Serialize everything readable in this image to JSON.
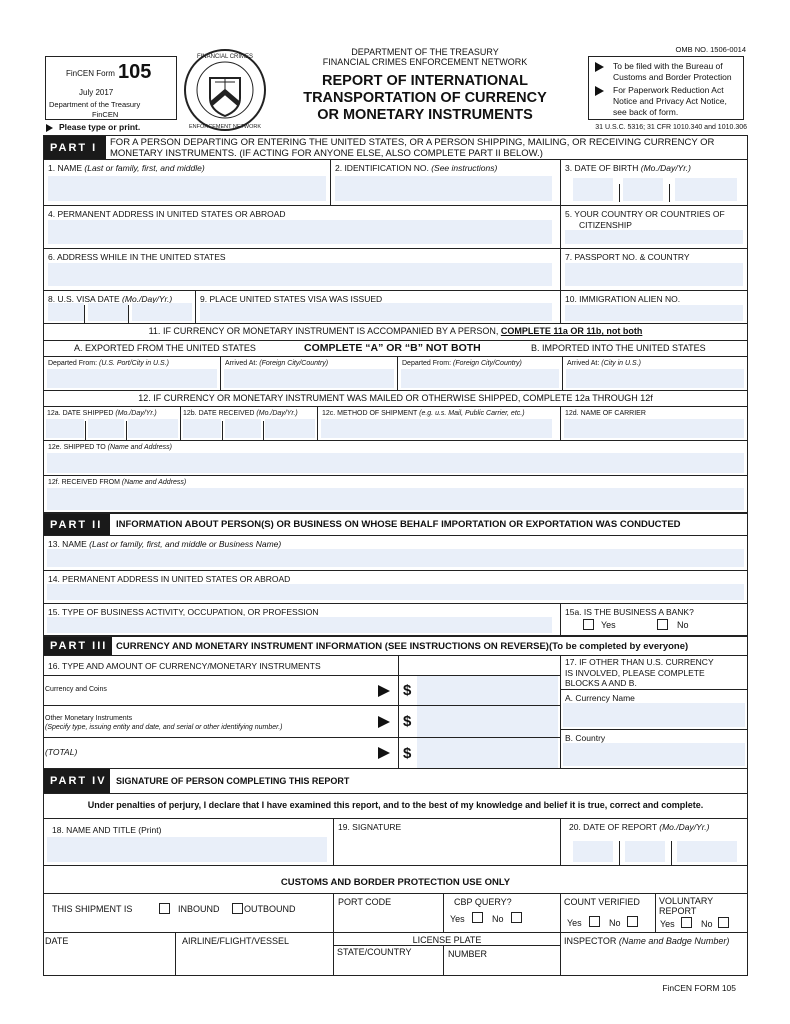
{
  "header": {
    "form_label": "FinCEN Form",
    "form_number": "105",
    "date": "July 2017",
    "dept1": "Department of the Treasury",
    "dept2": "FinCEN",
    "agency1": "DEPARTMENT OF THE TREASURY",
    "agency2": "FINANCIAL CRIMES ENFORCEMENT NETWORK",
    "title1": "REPORT OF INTERNATIONAL",
    "title2": "TRANSPORTATION OF CURRENCY",
    "title3": "OR MONETARY INSTRUMENTS",
    "omb": "OMB NO. 1506-0014",
    "note1a": "To be filed with the Bureau of",
    "note1b": "Customs and Border Protection",
    "note2a": "For Paperwork Reduction Act",
    "note2b": "Notice and Privacy Act Notice,",
    "note2c": "see back of form.",
    "please": "Please type or print.",
    "citation": "31 U.S.C. 5316;  31 CFR 1010.340 and 1010.306",
    "seal_text": "FINANCIAL CRIMES ENFORCEMENT NETWORK"
  },
  "part1": {
    "label": "PART I",
    "desc1": "FOR A PERSON DEPARTING OR ENTERING THE UNITED STATES, OR A PERSON SHIPPING, MAILING, OR RECEIVING CURRENCY OR",
    "desc2": "MONETARY INSTRUMENTS. (IF ACTING FOR  ANYONE ELSE, ALSO COMPLETE PART II BELOW.)",
    "f1": "1. NAME",
    "f1i": "(Last or family, first, and middle)",
    "f2": "2. IDENTIFICATION NO.",
    "f2i": "(See instructions)",
    "f3": "3. DATE OF BIRTH",
    "f3i": "(Mo./Day/Yr.)",
    "f4": "4. PERMANENT ADDRESS IN UNITED STATES OR ABROAD",
    "f5a": "5. YOUR COUNTRY OR COUNTRIES OF",
    "f5b": "CITIZENSHIP",
    "f6": "6. ADDRESS WHILE IN THE UNITED STATES",
    "f7": "7. PASSPORT NO. & COUNTRY",
    "f8": "8. U.S. VISA DATE",
    "f8i": "(Mo./Day/Yr.)",
    "f9": "9. PLACE UNITED STATES VISA WAS ISSUED",
    "f10": "10. IMMIGRATION ALIEN NO.",
    "f11": "11. IF CURRENCY OR MONETARY INSTRUMENT IS ACCOMPANIED BY A PERSON,",
    "f11b": "COMPLETE 11a OR 11b, not both",
    "f11A": "A. EXPORTED FROM THE UNITED STATES",
    "f11mid": "COMPLETE “A” OR “B” NOT BOTH",
    "f11B": "B. IMPORTED INTO THE UNITED STATES",
    "dep1": "Departed From:",
    "dep1i": "(U.S. Port/City in U.S.)",
    "arr1": "Arrived At:",
    "arr1i": "(Foreign City/Country)",
    "dep2": "Departed From:",
    "dep2i": "(Foreign City/Country)",
    "arr2": "Arrived At:",
    "arr2i": "(City in U.S.)",
    "f12": "12. IF CURRENCY OR MONETARY INSTRUMENT WAS MAILED OR OTHERWISE SHIPPED, COMPLETE 12a THROUGH 12f",
    "f12a": "12a. DATE  SHIPPED",
    "f12ai": "(Mo./Day/Yr.)",
    "f12b": "12b. DATE  RECEIVED",
    "f12bi": "(Mo./Day/Yr.)",
    "f12c": "12c. METHOD OF SHIPMENT",
    "f12ci": "(e.g. u.s. Mail, Public Carrier, etc.)",
    "f12d": "12d. NAME OF CARRIER",
    "f12e": "12e. SHIPPED TO",
    "f12ei": "(Name and Address)",
    "f12f": "12f. RECEIVED FROM",
    "f12fi": "(Name and Address)"
  },
  "part2": {
    "label": "PART II",
    "title": "INFORMATION ABOUT PERSON(S) OR BUSINESS ON WHOSE BEHALF IMPORTATION OR EXPORTATION WAS CONDUCTED",
    "f13": "13. NAME",
    "f13i": "(Last or family, first, and middle or Business Name)",
    "f14": "14. PERMANENT ADDRESS IN UNITED STATES OR ABROAD",
    "f15": "15. TYPE OF BUSINESS ACTIVITY, OCCUPATION, OR PROFESSION",
    "f15a": "15a. IS THE BUSINESS A BANK?",
    "yes": "Yes",
    "no": "No"
  },
  "part3": {
    "label": "PART III",
    "title": "CURRENCY AND MONETARY INSTRUMENT INFORMATION (SEE INSTRUCTIONS ON REVERSE)(To be completed by everyone)",
    "f16": "16. TYPE AND AMOUNT OF CURRENCY/MONETARY INSTRUMENTS",
    "row1": "Currency and Coins",
    "row2": "Other Monetary Instruments",
    "row2i": "(Specify type, issuing entity and date, and serial or other identifying number.)",
    "row3": "(TOTAL)",
    "dollar": "$",
    "f17a": "17. IF OTHER THAN U.S. CURRENCY",
    "f17b": "IS INVOLVED, PLEASE COMPLETE",
    "f17c": "BLOCKS A AND B.",
    "f17A": "A. Currency Name",
    "f17B": "B. Country"
  },
  "part4": {
    "label": "PART IV",
    "title": "SIGNATURE OF PERSON COMPLETING THIS REPORT",
    "perjury": "Under penalties of perjury, I declare that I have examined this report, and to the best of my knowledge and belief it is true,  correct and complete.",
    "f18": "18. NAME AND TITLE (Print)",
    "f19": "19. SIGNATURE",
    "f20": "20. DATE OF REPORT",
    "f20i": "(Mo./Day/Yr.)"
  },
  "cbp": {
    "title": "CUSTOMS AND BORDER PROTECTION USE ONLY",
    "shipment": "THIS SHIPMENT IS",
    "inbound": "INBOUND",
    "outbound": "OUTBOUND",
    "port": "PORT CODE",
    "query": "CBP QUERY?",
    "count": "COUNT VERIFIED",
    "vol1": "VOLUNTARY",
    "vol2": "REPORT",
    "yes": "Yes",
    "no": "No",
    "date": "DATE",
    "airline": "AIRLINE/FLIGHT/VESSEL",
    "plate": "LICENSE PLATE",
    "state": "STATE/COUNTRY",
    "number": "NUMBER",
    "inspector": "INSPECTOR",
    "inspectori": "(Name and Badge Number)"
  },
  "footer": "FinCEN FORM 105"
}
